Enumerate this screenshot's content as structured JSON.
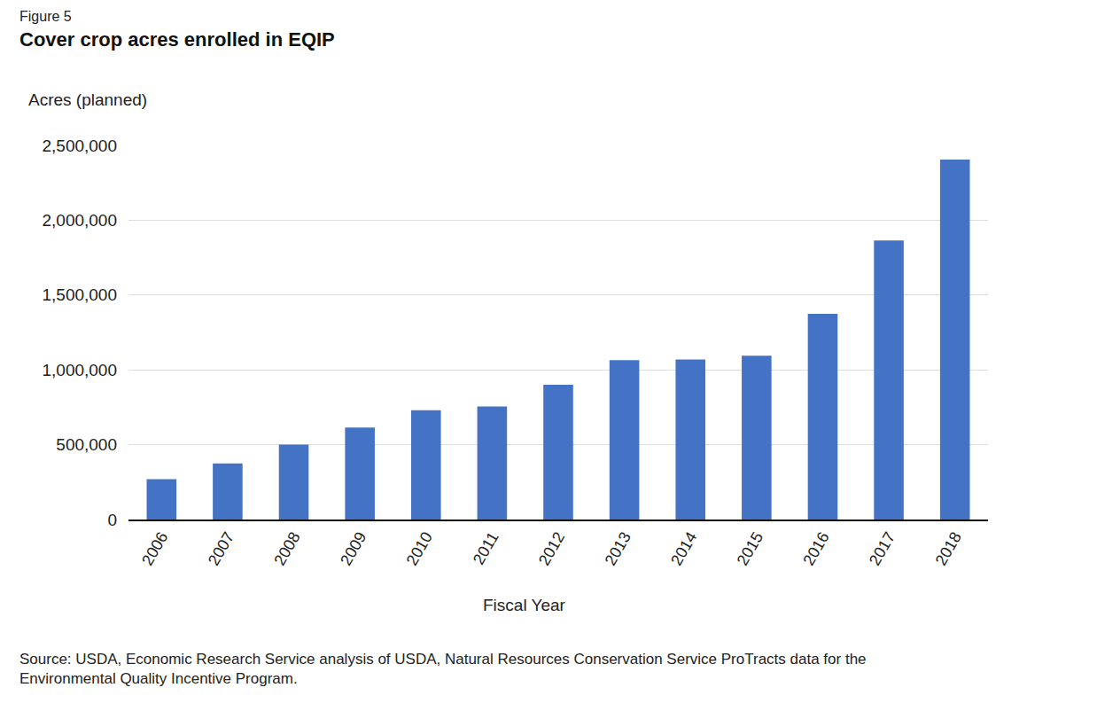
{
  "chart_data": {
    "type": "bar",
    "title": "Cover crop acres enrolled in EQIP",
    "annotations": [
      "Figure 5",
      "Source: USDA, Economic Research Service analysis of USDA, Natural Resources Conservation Service ProTracts data for the Environmental Quality Incentive Program."
    ],
    "y_label": "Acres (planned)",
    "x_label": "Fiscal Year",
    "categories": [
      "2006",
      "2007",
      "2008",
      "2009",
      "2010",
      "2011",
      "2012",
      "2013",
      "2014",
      "2015",
      "2016",
      "2017",
      "2018"
    ],
    "values": [
      270000,
      375000,
      500000,
      615000,
      730000,
      755000,
      900000,
      1065000,
      1070000,
      1095000,
      1375000,
      1865000,
      2405000
    ],
    "color": "#4472c4",
    "ylim": [
      0,
      2500000
    ],
    "yticks": [
      0,
      {
        "value": 500000,
        "label": "500,000"
      },
      {
        "value": 1000000,
        "label": "1,000,000"
      },
      {
        "value": 1500000,
        "label": "1,500,000"
      },
      {
        "value": 2000000,
        "label": "2,000,000"
      },
      {
        "value": 2500000,
        "label": "2,500,000"
      }
    ],
    "grid": true
  }
}
